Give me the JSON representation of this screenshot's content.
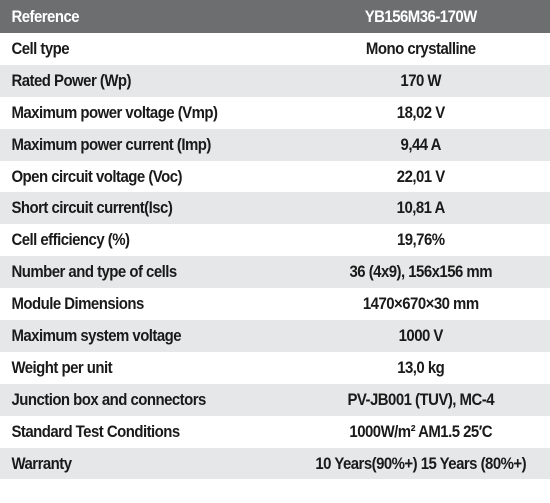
{
  "table": {
    "header": {
      "label": "Reference",
      "value": "YB156M36-170W"
    },
    "rows": [
      {
        "label": "Cell type",
        "value": "Mono crystalline"
      },
      {
        "label": "Rated Power (Wp)",
        "value": "170 W"
      },
      {
        "label": "Maximum power voltage (Vmp)",
        "value": "18,02 V"
      },
      {
        "label": "Maximum power current (Imp)",
        "value": "9,44 A"
      },
      {
        "label": "Open circuit voltage (Voc)",
        "value": "22,01 V"
      },
      {
        "label": "Short circuit current(Isc)",
        "value": "10,81 A"
      },
      {
        "label": "Cell efficiency (%)",
        "value": "19,76%"
      },
      {
        "label": "Number and type of cells",
        "value": "36 (4x9), 156x156 mm"
      },
      {
        "label": "Module Dimensions",
        "value": "1470×670×30 mm"
      },
      {
        "label": "Maximum system voltage",
        "value": "1000 V"
      },
      {
        "label": "Weight per unit",
        "value": "13,0 kg"
      },
      {
        "label": "Junction box and connectors",
        "value": "PV-JB001 (TUV), MC-4"
      },
      {
        "label": "Standard Test Conditions",
        "value": "1000W/m² AM1.5 25′C"
      },
      {
        "label": "Warranty",
        "value": "10 Years(90%+) 15 Years (80%+)"
      }
    ]
  },
  "colors": {
    "header_bg": "#6d6e70",
    "stripe_bg": "#e6e7e8",
    "text": "#1a1a1a"
  }
}
